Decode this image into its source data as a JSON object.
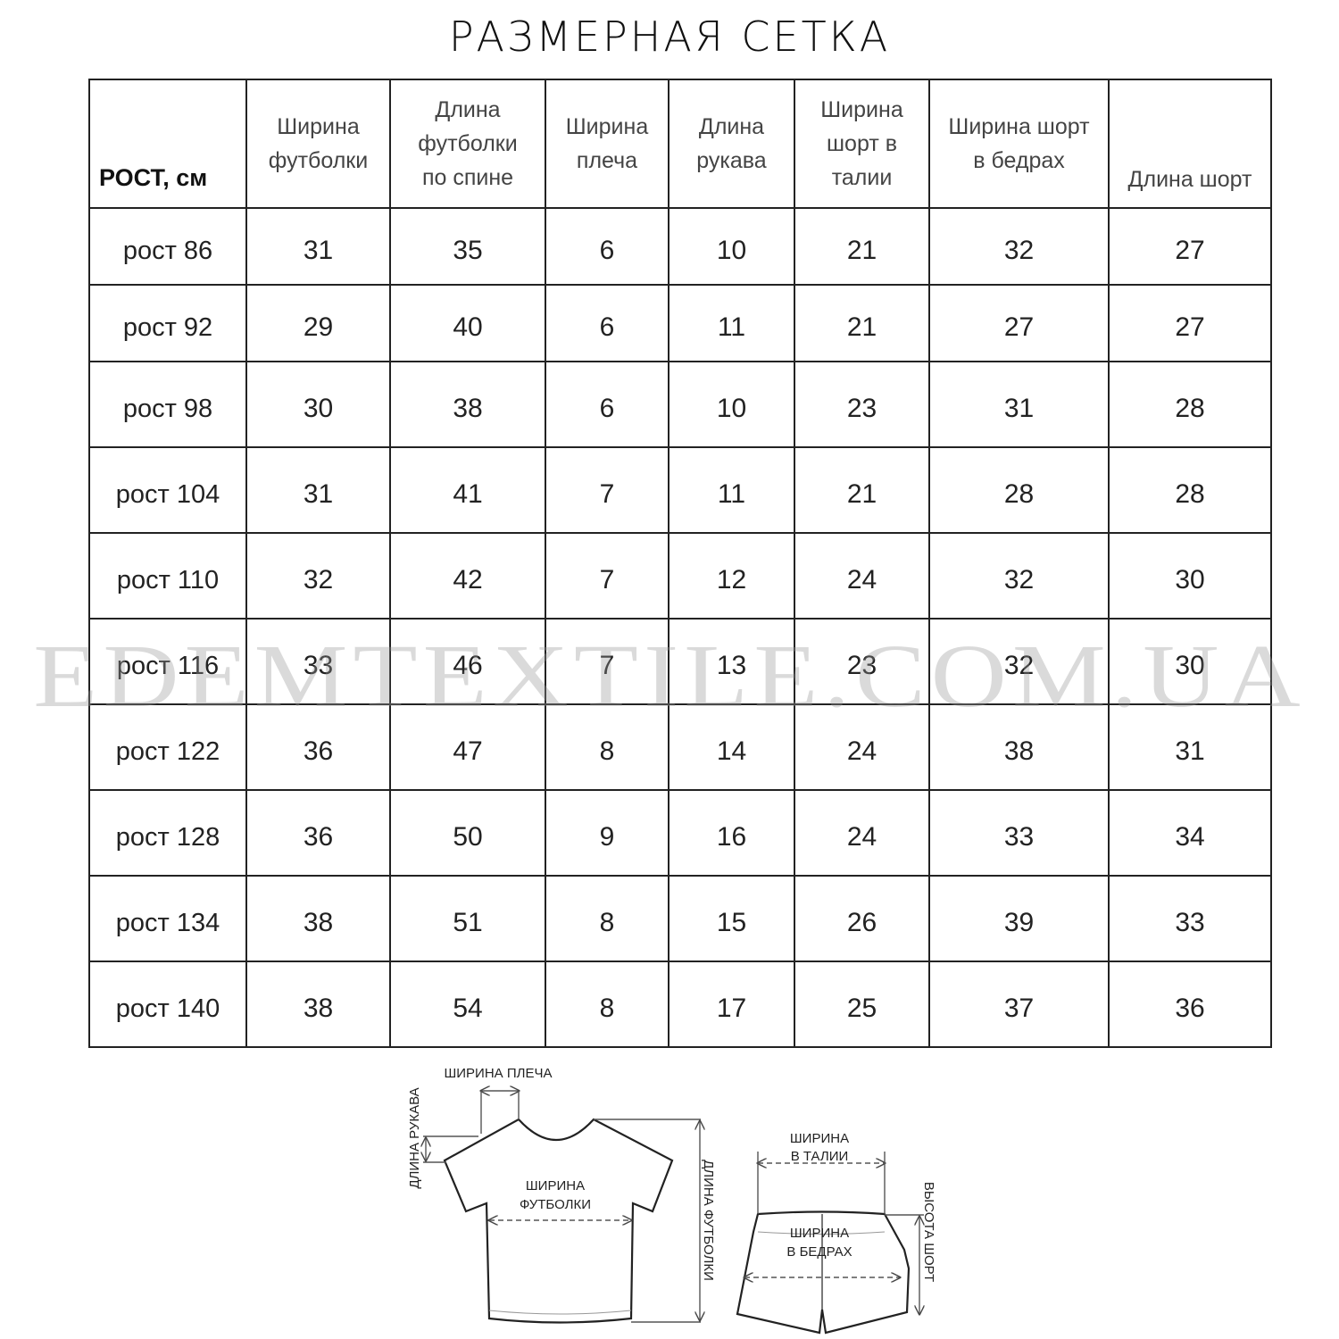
{
  "title": "РАЗМЕРНАЯ СЕТКА",
  "table": {
    "headers": [
      "РОСТ, см",
      "Ширина футболки",
      "Длина футболки по спине",
      "Ширина плеча",
      "Длина рукава",
      "Ширина шорт в талии",
      "Ширина шорт в бедрах",
      "Длина шорт"
    ],
    "rows": [
      [
        "рост 86",
        "31",
        "35",
        "6",
        "10",
        "21",
        "32",
        "27"
      ],
      [
        "рост 92",
        "29",
        "40",
        "6",
        "11",
        "21",
        "27",
        "27"
      ],
      [
        "рост 98",
        "30",
        "38",
        "6",
        "10",
        "23",
        "31",
        "28"
      ],
      [
        "рост 104",
        "31",
        "41",
        "7",
        "11",
        "21",
        "28",
        "28"
      ],
      [
        "рост 110",
        "32",
        "42",
        "7",
        "12",
        "24",
        "32",
        "30"
      ],
      [
        "рост 116",
        "33",
        "46",
        "7",
        "13",
        "23",
        "32",
        "30"
      ],
      [
        "рост 122",
        "36",
        "47",
        "8",
        "14",
        "24",
        "38",
        "31"
      ],
      [
        "рост 128",
        "36",
        "50",
        "9",
        "16",
        "24",
        "33",
        "34"
      ],
      [
        "рост 134",
        "38",
        "51",
        "8",
        "15",
        "26",
        "39",
        "33"
      ],
      [
        "рост 140",
        "38",
        "54",
        "8",
        "17",
        "25",
        "37",
        "36"
      ]
    ]
  },
  "watermark": "EDEMTEXTILE.COM.UA",
  "diagram": {
    "tshirt": {
      "shoulder_width": "ШИРИНА ПЛЕЧА",
      "sleeve_length": "ДЛИНА РУКАВА",
      "width_line1": "ШИРИНА",
      "width_line2": "ФУТБОЛКИ",
      "length": "ДЛИНА ФУТБОЛКИ"
    },
    "shorts": {
      "waist_line1": "ШИРИНА",
      "waist_line2": "В ТАЛИИ",
      "hips_line1": "ШИРИНА",
      "hips_line2": "В БЕДРАХ",
      "height": "ВЫСОТА ШОРТ"
    }
  }
}
